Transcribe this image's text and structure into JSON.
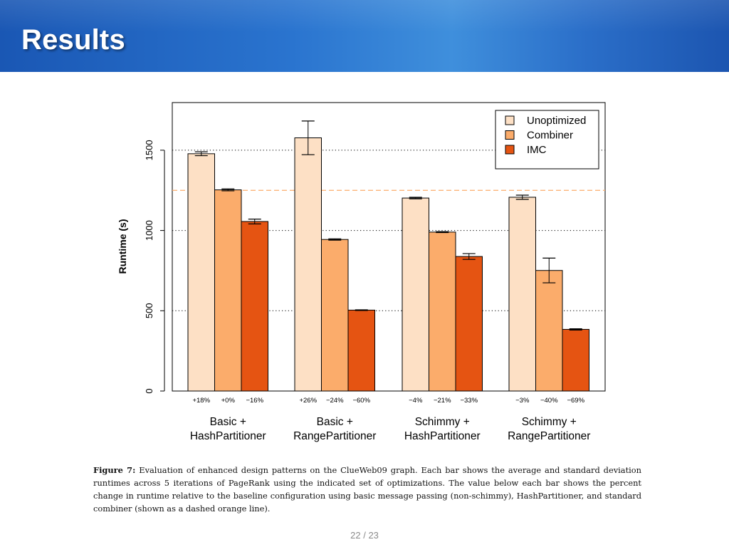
{
  "slide": {
    "title": "Results"
  },
  "page": {
    "current": "22",
    "separator": "/",
    "total": "23"
  },
  "caption": {
    "label": "Figure 7:",
    "text": "Evaluation of enhanced design patterns on the ClueWeb09 graph. Each bar shows the average and standard deviation runtimes across 5 iterations of PageRank using the indicated set of optimizations. The value below each bar shows the percent change in runtime relative to the baseline configuration using basic message passing (non-schimmy), HashPartitioner, and standard combiner (shown as a dashed orange line)."
  },
  "colors": {
    "unoptimized": "#fde0c5",
    "combiner": "#fbac6b",
    "imc": "#e55412",
    "baseline": "#fbac6b"
  },
  "chart_data": {
    "type": "bar",
    "title": "",
    "xlabel": "",
    "ylabel": "Runtime (s)",
    "ylim": [
      0,
      1800
    ],
    "yticks": [
      0,
      500,
      1000,
      1500
    ],
    "grid": "dotted horizontal at 500, 1000, 1500",
    "legend_position": "top-right",
    "baseline": {
      "value": 1250,
      "style": "dashed",
      "label": "standard combiner baseline"
    },
    "categories": [
      {
        "line1": "Basic +",
        "line2": "HashPartitioner"
      },
      {
        "line1": "Basic +",
        "line2": "RangePartitioner"
      },
      {
        "line1": "Schimmy +",
        "line2": "HashPartitioner"
      },
      {
        "line1": "Schimmy +",
        "line2": "RangePartitioner"
      }
    ],
    "series": [
      {
        "name": "Unoptimized",
        "values": [
          1478,
          1577,
          1202,
          1207
        ],
        "errors": [
          12,
          105,
          5,
          13
        ],
        "pct_labels": [
          "+18%",
          "+26%",
          "−4%",
          "−3%"
        ]
      },
      {
        "name": "Combiner",
        "values": [
          1253,
          944,
          990,
          751
        ],
        "errors": [
          6,
          4,
          3,
          77
        ],
        "pct_labels": [
          "+0%",
          "−24%",
          "−21%",
          "−40%"
        ]
      },
      {
        "name": "IMC",
        "values": [
          1056,
          504,
          838,
          384
        ],
        "errors": [
          15,
          2,
          18,
          4
        ],
        "pct_labels": [
          "−16%",
          "−60%",
          "−33%",
          "−69%"
        ]
      }
    ]
  }
}
